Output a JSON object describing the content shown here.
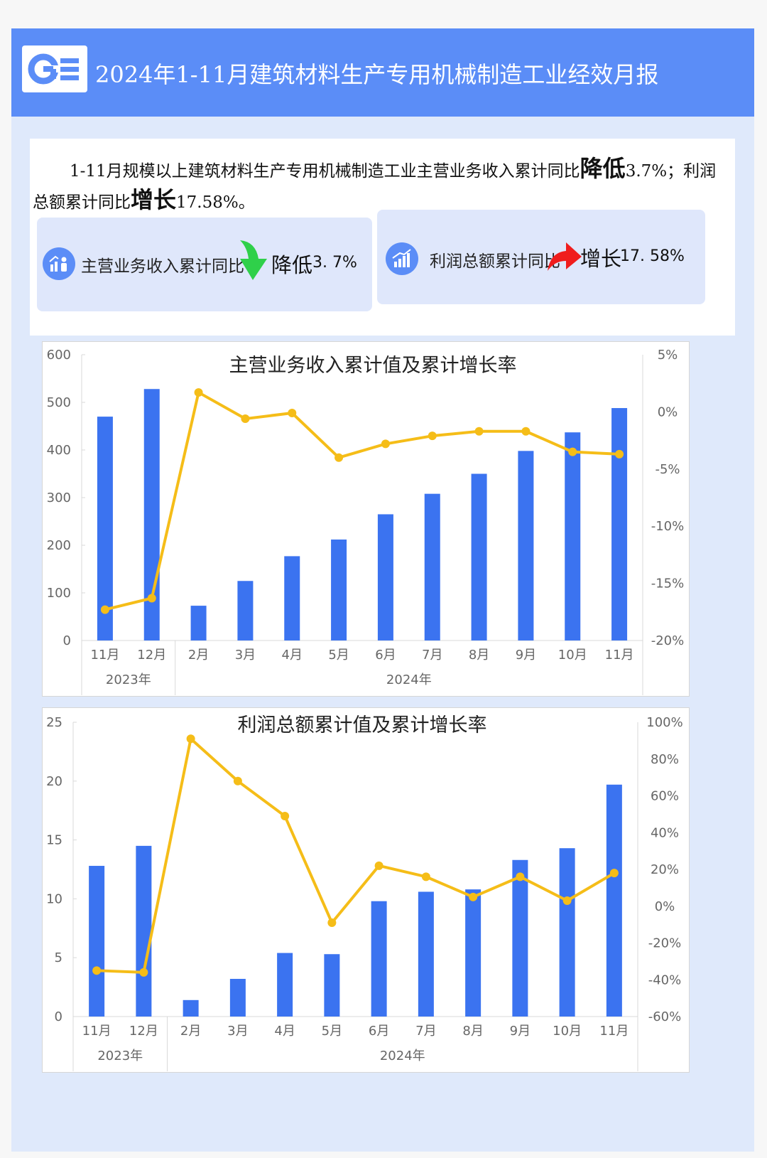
{
  "header": {
    "title": "2024年1-11月建筑材料生产专用机械制造工业经效月报",
    "logo_icon": "ge-logo-icon",
    "accent_color": "#5b8df7"
  },
  "summary": {
    "line1_prefix": "1-11月规模以上建筑材料生产专用机械制造工业主营业务收入累计同比",
    "line1_word": "降低",
    "line2_value1": "3.7%；利润总额累计同比",
    "line2_word": "增长",
    "line2_value2": "17.58%。"
  },
  "cards": [
    {
      "icon": "chart-people-icon",
      "label": "主营业务收入累计同比",
      "arrow": "down-arrow-icon",
      "arrow_color": "#2fd04a",
      "word": "降低",
      "value": "3. 7%"
    },
    {
      "icon": "bar-chart-icon",
      "label": "利润总额累计同比",
      "arrow": "up-arrow-icon",
      "arrow_color": "#f01d1d",
      "word": "增长",
      "value": "17. 58%"
    }
  ],
  "chart_data": [
    {
      "type": "bar",
      "title": "主营业务收入累计值及累计增长率",
      "categories": [
        "11月",
        "12月",
        "2月",
        "3月",
        "4月",
        "5月",
        "6月",
        "7月",
        "8月",
        "9月",
        "10月",
        "11月"
      ],
      "groups": [
        {
          "label": "2023年",
          "count": 2
        },
        {
          "label": "2024年",
          "count": 10
        }
      ],
      "series": [
        {
          "type": "bar",
          "axis": "left",
          "color": "#3b73f0",
          "values": [
            470,
            528,
            73,
            125,
            177,
            212,
            265,
            308,
            350,
            398,
            437,
            488
          ]
        },
        {
          "type": "line",
          "axis": "right",
          "color": "#f5bd18",
          "values": [
            -17.3,
            -16.3,
            1.7,
            -0.6,
            -0.1,
            -4.0,
            -2.8,
            -2.1,
            -1.7,
            -1.7,
            -3.5,
            -3.7
          ]
        }
      ],
      "ylim_left": [
        0,
        600
      ],
      "yticks_left": [
        "0",
        "100",
        "200",
        "300",
        "400",
        "500",
        "600"
      ],
      "ylim_right": [
        -20,
        5
      ],
      "yticks_right": [
        "-20%",
        "-15%",
        "-10%",
        "-5%",
        "0%",
        "5%"
      ]
    },
    {
      "type": "bar",
      "title": "利润总额累计值及累计增长率",
      "categories": [
        "11月",
        "12月",
        "2月",
        "3月",
        "4月",
        "5月",
        "6月",
        "7月",
        "8月",
        "9月",
        "10月",
        "11月"
      ],
      "groups": [
        {
          "label": "2023年",
          "count": 2
        },
        {
          "label": "2024年",
          "count": 10
        }
      ],
      "series": [
        {
          "type": "bar",
          "axis": "left",
          "color": "#3b73f0",
          "values": [
            12.8,
            14.5,
            1.4,
            3.2,
            5.4,
            5.3,
            9.8,
            10.6,
            10.8,
            13.3,
            14.3,
            19.7
          ]
        },
        {
          "type": "line",
          "axis": "right",
          "color": "#f5bd18",
          "values": [
            -35,
            -36,
            91,
            68,
            49,
            -9,
            22,
            16,
            5,
            16,
            3,
            18
          ]
        }
      ],
      "ylim_left": [
        0,
        25
      ],
      "yticks_left": [
        "0",
        "5",
        "10",
        "15",
        "20",
        "25"
      ],
      "ylim_right": [
        -60,
        100
      ],
      "yticks_right": [
        "-60%",
        "-40%",
        "-20%",
        "0%",
        "20%",
        "40%",
        "60%",
        "80%",
        "100%"
      ]
    }
  ]
}
